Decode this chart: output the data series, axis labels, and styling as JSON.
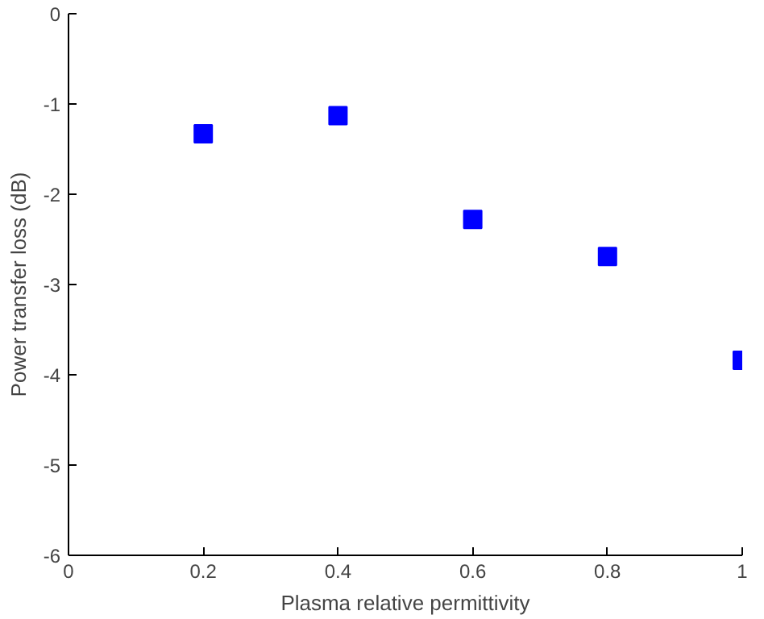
{
  "chart_data": {
    "type": "scatter",
    "xlabel": "Plasma relative permittivity",
    "ylabel": "Power transfer loss (dB)",
    "x": [
      0.2,
      0.4,
      0.6,
      0.8,
      1.0
    ],
    "series": [
      {
        "color": "#0000ff",
        "values": [
          -1.33,
          -1.13,
          -2.28,
          -2.69,
          -3.84
        ]
      }
    ],
    "xlim": [
      0,
      1
    ],
    "ylim": [
      -6,
      0
    ],
    "xticks": [
      0,
      0.2,
      0.4,
      0.6,
      0.8,
      1
    ],
    "yticks": [
      -6,
      -5,
      -4,
      -3,
      -2,
      -1,
      0
    ],
    "marker": "square",
    "grid": false
  }
}
